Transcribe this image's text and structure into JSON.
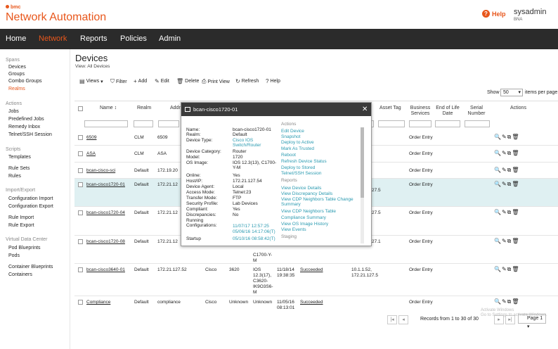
{
  "header": {
    "brand": "bmc",
    "app_title": "Network Automation",
    "help_label": "Help",
    "user_name": "sysadmin",
    "user_realm": "BNA"
  },
  "nav": {
    "items": [
      {
        "label": "Home"
      },
      {
        "label": "Network"
      },
      {
        "label": "Reports"
      },
      {
        "label": "Policies"
      },
      {
        "label": "Admin"
      }
    ],
    "active": "Network"
  },
  "sidebar": {
    "sections": [
      {
        "heading": "Spans",
        "items": [
          "Devices",
          "Groups",
          "Combo Groups",
          "Realms"
        ]
      },
      {
        "heading": "Actions",
        "items": [
          "Jobs",
          "Predefined Jobs",
          "Remedy Inbox",
          "Telnet/SSH Session"
        ]
      },
      {
        "heading": "Scripts",
        "items": [
          "Templates",
          "Rule Sets",
          "Rules"
        ]
      },
      {
        "heading": "Import/Export",
        "items": [
          "Configuration Import",
          "Configuration Export",
          "Rule Import",
          "Rule Export"
        ]
      },
      {
        "heading": "Virtual Data Center",
        "items": [
          "Pod Blueprints",
          "Pods",
          "Container Blueprints",
          "Containers"
        ]
      }
    ],
    "selected": "Realms"
  },
  "page": {
    "title": "Devices",
    "subtitle": "View: All Devices"
  },
  "toolbar": {
    "views": "Views",
    "filter": "Filter",
    "add": "Add",
    "edit": "Edit",
    "delete": "Delete",
    "print": "Print View",
    "refresh": "Refresh",
    "help": "Help"
  },
  "show": {
    "label": "Show",
    "value": "50",
    "suffix": "items per page"
  },
  "table": {
    "columns": {
      "name": "Name",
      "realm": "Realm",
      "address": "Addr",
      "asset_tag": "Asset Tag",
      "business_services": "Business Services",
      "eol": "End of Life Date",
      "serial": "Serial Number",
      "actions": "Actions",
      "partial_col": "s"
    },
    "rows": [
      {
        "name": "6509",
        "realm": "CLM",
        "addr": "6509",
        "biz": "Order Entry"
      },
      {
        "name": "ASA",
        "realm": "CLM",
        "addr": "ASA",
        "biz": "Order Entry"
      },
      {
        "name": "bcan-cisco-sci",
        "realm": "Default",
        "addr": "172.19.20",
        "biz": "Order Entry"
      },
      {
        "name": "bcan-cisco1720-01",
        "realm": "Default",
        "addr": "172.21.12",
        "extra": "27.5",
        "biz": "Order Entry"
      },
      {
        "name": "bcan-cisco1720-04",
        "realm": "Default",
        "addr": "172.21.12",
        "extra": "27.5",
        "biz": "Order Entry"
      },
      {
        "name": "bcan-cisco1720-08",
        "realm": "Default",
        "addr": "172.21.12",
        "extra": "27.1",
        "c1700": "C1700-Y-",
        "c1700b": "M",
        "biz": "Order Entry"
      },
      {
        "name": "bcan-cisco3640-01",
        "realm": "Default",
        "addr": "172.21.127.52",
        "vendor": "Cisco",
        "model": "3620",
        "os1": "IOS",
        "os2": "12.3(17),",
        "os3": "C3620-",
        "os4": "IK9O3S6-",
        "os5": "M",
        "date1": "11/18/14",
        "date2": "19:38:35",
        "status": "Succeeded",
        "ip1": "10.1.1.52,",
        "ip2": "172.21.127.5",
        "biz": "Order Entry"
      },
      {
        "name": "Compliance",
        "realm": "Default",
        "addr": "compliance",
        "vendor": "Cisco",
        "model": "Unknown",
        "os1": "Unknown",
        "date1": "11/05/16",
        "date2": "08:13:01",
        "status": "Succeeded",
        "biz": "Order Entry"
      }
    ]
  },
  "popup": {
    "title": "bcan-cisco1720-01",
    "fields": [
      {
        "label": "Name:",
        "value": "bcan-cisco1720-01"
      },
      {
        "label": "Realm:",
        "value": "Default"
      },
      {
        "label": "Device Type:",
        "value": "Cisco IOS Switch/Router"
      },
      {
        "label": "Device Category:",
        "value": "Router"
      },
      {
        "label": "Model:",
        "value": "1720"
      },
      {
        "label": "OS Image:",
        "value": "IOS 12.3(13), C1700-Y-M"
      },
      {
        "label": "Online:",
        "value": "Yes"
      },
      {
        "label": "Host/IP:",
        "value": "172.21.127.54"
      },
      {
        "label": "Device Agent:",
        "value": "Local"
      },
      {
        "label": "Access Mode:",
        "value": "Telnet:23"
      },
      {
        "label": "Transfer Mode:",
        "value": "FTP"
      },
      {
        "label": "Security Profile:",
        "value": "Lab Devices"
      },
      {
        "label": "Compliant:",
        "value": "Yes"
      },
      {
        "label": "Discrepancies:",
        "value": "No"
      },
      {
        "label": "Running Configurations:",
        "value": "11/07/17 12:57:25"
      },
      {
        "label": "",
        "value": "05/06/16 14:17:06(T)"
      },
      {
        "label": "Startup",
        "value": "05/10/16 08:58:42(T)"
      }
    ],
    "actions_heading": "Actions",
    "actions": [
      "Edit Device",
      "Snapshot",
      "Deploy to Active",
      "Mark As Trusted",
      "Reboot",
      "Refresh Device Status",
      "Deploy to Stored",
      "Telnet/SSH Session"
    ],
    "reports_heading": "Reports",
    "reports": [
      "View Device Details",
      "View Discrepancy Details",
      "View CDP Neighbors Table Change Summary",
      "View CDP Neighbors Table",
      "Compliance Summary",
      "View OS Image History",
      "View Events"
    ],
    "staging_heading": "Staging"
  },
  "footer": {
    "records": "Records from 1 to 30 of 30",
    "page": "Page 1"
  },
  "watermark": {
    "line1": "Activate Windows",
    "line2": "Go to Settings to activate Windows."
  },
  "colors": {
    "accent": "#e8571c",
    "nav_bg": "#2b2b2b",
    "link": "#2a9ab0",
    "highlight_row": "#dff0f2"
  }
}
